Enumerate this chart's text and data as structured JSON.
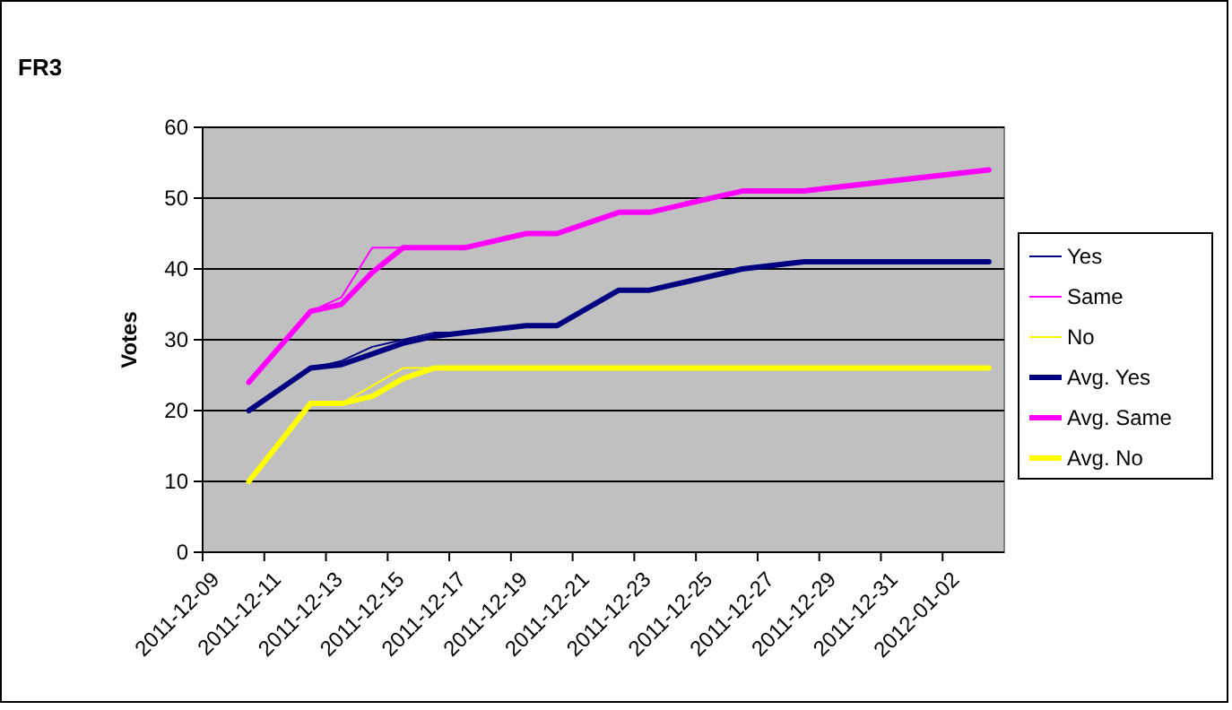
{
  "chart_data": {
    "type": "line",
    "title": "FR3",
    "ylabel": "Votes",
    "x": [
      "2011-12-10T12:00",
      "2011-12-12T12:00",
      "2011-12-13T12:00",
      "2011-12-14T12:00",
      "2011-12-15T12:00",
      "2011-12-16T12:00",
      "2011-12-17T12:00",
      "2011-12-19T12:00",
      "2011-12-20T12:00",
      "2011-12-22T12:00",
      "2011-12-23T12:00",
      "2011-12-26T12:00",
      "2011-12-28T12:00",
      "2012-01-03T12:00"
    ],
    "series": [
      {
        "name": "Yes",
        "color": "#000080",
        "values": [
          20,
          26,
          27,
          29,
          30,
          31,
          31,
          32,
          32,
          37,
          37,
          40,
          41,
          41
        ]
      },
      {
        "name": "Same",
        "color": "#ff00ff",
        "values": [
          24,
          34,
          36,
          43,
          43,
          43,
          43,
          45,
          45,
          48,
          48,
          51,
          51,
          54
        ]
      },
      {
        "name": "No",
        "color": "#ffff00",
        "values": [
          10,
          21,
          21,
          23.5,
          26,
          26,
          26,
          26,
          26,
          26,
          26,
          26,
          26,
          26
        ]
      },
      {
        "name": "Avg. Yes",
        "color": "#000080",
        "values": [
          20,
          26,
          26.5,
          28,
          29.5,
          30.5,
          31,
          32,
          32,
          37,
          37,
          40,
          41,
          41
        ]
      },
      {
        "name": "Avg. Same",
        "color": "#ff00ff",
        "values": [
          24,
          34,
          35,
          39.5,
          43,
          43,
          43,
          45,
          45,
          48,
          48,
          51,
          51,
          54
        ]
      },
      {
        "name": "Avg. No",
        "color": "#ffff00",
        "values": [
          10,
          21,
          21,
          22,
          24.5,
          26,
          26,
          26,
          26,
          26,
          26,
          26,
          26,
          26
        ]
      }
    ],
    "xlim": [
      "2011-12-09",
      "2012-01-04"
    ],
    "xticks": [
      "2011-12-09",
      "2011-12-11",
      "2011-12-13",
      "2011-12-15",
      "2011-12-17",
      "2011-12-19",
      "2011-12-21",
      "2011-12-23",
      "2011-12-25",
      "2011-12-27",
      "2011-12-29",
      "2011-12-31",
      "2012-01-02"
    ],
    "ylim": [
      0,
      60
    ],
    "yticks": [
      0,
      10,
      20,
      30,
      40,
      50,
      60
    ],
    "grid": "y",
    "legend": "right",
    "marker": "none",
    "line_style": "solid"
  }
}
